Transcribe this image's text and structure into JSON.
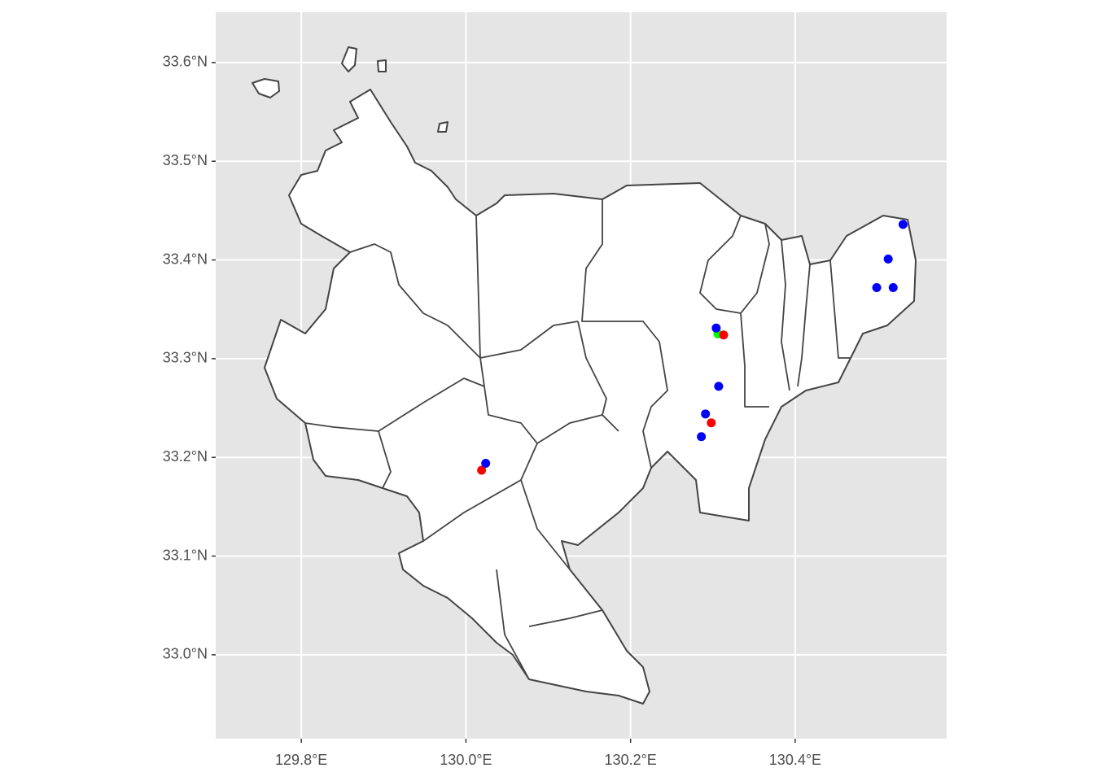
{
  "chart_data": {
    "type": "map",
    "xlim": [
      129.696,
      130.584
    ],
    "ylim": [
      32.915,
      33.651
    ],
    "xticks": [
      {
        "value": 129.8,
        "label": "129.8°E"
      },
      {
        "value": 130.0,
        "label": "130.0°E"
      },
      {
        "value": 130.2,
        "label": "130.2°E"
      },
      {
        "value": 130.4,
        "label": "130.4°E"
      }
    ],
    "yticks": [
      {
        "value": 33.0,
        "label": "33.0°N"
      },
      {
        "value": 33.1,
        "label": "33.1°N"
      },
      {
        "value": 33.2,
        "label": "33.2°N"
      },
      {
        "value": 33.3,
        "label": "33.3°N"
      },
      {
        "value": 33.4,
        "label": "33.4°N"
      },
      {
        "value": 33.5,
        "label": "33.5°N"
      },
      {
        "value": 33.6,
        "label": "33.6°N"
      }
    ],
    "grid": true,
    "series": [
      {
        "color": "#00ff00",
        "x": [
          130.306
        ],
        "values": [
          33.325
        ]
      },
      {
        "color": "#ff0000",
        "x": [
          130.313,
          130.298,
          130.019
        ],
        "values": [
          33.324,
          33.235,
          33.187
        ]
      },
      {
        "color": "#0000ff",
        "x": [
          130.531,
          130.513,
          130.499,
          130.519,
          130.304,
          130.307,
          130.291,
          130.286,
          130.024
        ],
        "values": [
          33.436,
          33.401,
          33.372,
          33.372,
          33.331,
          33.272,
          33.244,
          33.221,
          33.194
        ]
      }
    ]
  }
}
